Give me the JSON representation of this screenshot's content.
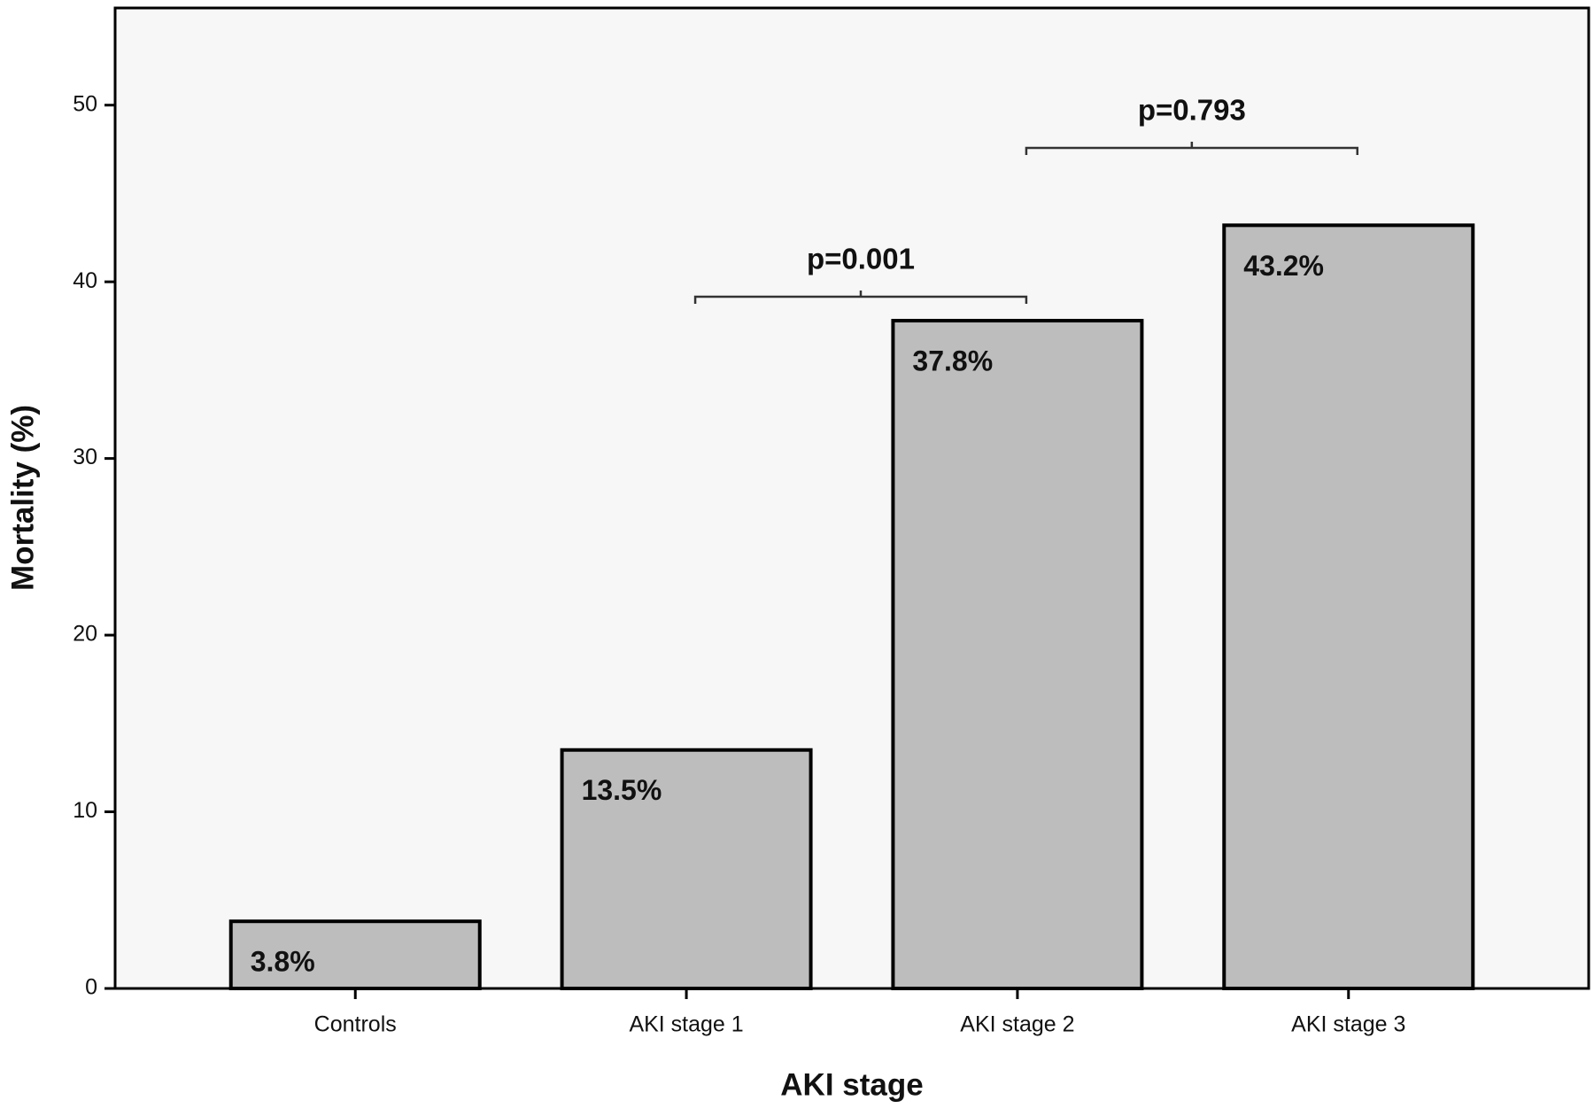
{
  "chart_data": {
    "type": "bar",
    "x_label": "AKI stage",
    "y_label": "Mortality (%)",
    "categories": [
      "Controls",
      "AKI stage 1",
      "AKI stage 2",
      "AKI stage 3"
    ],
    "values": [
      3.8,
      13.5,
      37.8,
      43.2
    ],
    "value_labels": [
      "3.8%",
      "13.5%",
      "37.8%",
      "43.2%"
    ],
    "color": "#bdbdbd",
    "ylim": [
      0,
      55.5
    ],
    "yticks": [
      0,
      10,
      20,
      30,
      40,
      50
    ],
    "grid": false,
    "annotations": [
      "p=0.001",
      "p=0.793"
    ]
  }
}
